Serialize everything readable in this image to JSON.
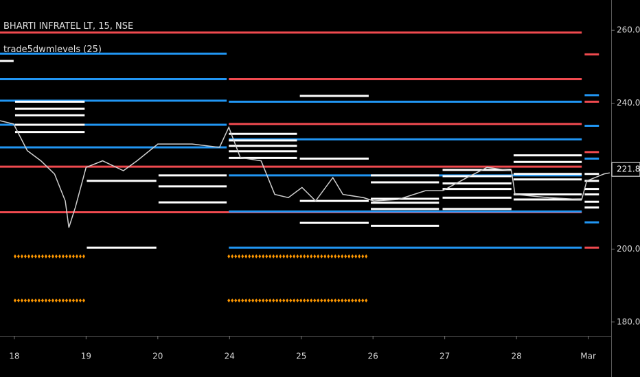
{
  "chart_data": {
    "type": "levels",
    "title": "BHARTI INFRATEL LT, 15, NSE",
    "subtitle": "trade5dwmlevels (25)",
    "background": "#000000",
    "xlim": [
      -0.2,
      8.32
    ],
    "ylim": [
      176.2,
      268.3
    ],
    "xticks": [
      {
        "value": 0,
        "label": "18"
      },
      {
        "value": 1,
        "label": "19"
      },
      {
        "value": 2,
        "label": "20"
      },
      {
        "value": 3,
        "label": "24"
      },
      {
        "value": 4,
        "label": "25"
      },
      {
        "value": 5,
        "label": "26"
      },
      {
        "value": 6,
        "label": "27"
      },
      {
        "value": 7,
        "label": "28"
      },
      {
        "value": 8,
        "label": "Mar"
      }
    ],
    "yticks": [
      {
        "value": 180,
        "label": "180.00"
      },
      {
        "value": 200,
        "label": "200.00"
      },
      {
        "value": 240,
        "label": "240.00"
      },
      {
        "value": 260,
        "label": "260.00"
      }
    ],
    "last_price": 221.85,
    "last_price_color": "#ffffff",
    "price": {
      "color": "#cfcfcf",
      "x": [
        -0.2,
        -0.01,
        0.18,
        0.37,
        0.56,
        0.71,
        0.76,
        0.85,
        1.0,
        1.23,
        1.52,
        1.71,
        2.0,
        2.48,
        2.86,
        2.99,
        3.15,
        3.44,
        3.63,
        3.82,
        4.01,
        4.2,
        4.44,
        4.58,
        4.87,
        5.01,
        5.35,
        5.73,
        5.97,
        6.31,
        6.59,
        6.93,
        6.98,
        7.45,
        7.91,
        7.98,
        8.22,
        8.3
      ],
      "values": [
        235.2,
        234.3,
        227,
        224.2,
        220.6,
        213.2,
        205.9,
        211.4,
        222.4,
        224.2,
        221.5,
        224.2,
        228.8,
        228.8,
        227.9,
        233.4,
        225.1,
        224.2,
        215.0,
        214.1,
        216.9,
        213.2,
        219.6,
        215.0,
        214.1,
        213.2,
        213.6,
        216.0,
        216.0,
        219.6,
        222.4,
        221.5,
        215.0,
        214.1,
        213.6,
        218.7,
        220.6,
        220.9
      ]
    },
    "levels": [
      {
        "color": "#f04a4f",
        "segments": [
          [
            -0.2,
            7.91,
            259.4
          ],
          [
            -0.2,
            7.91,
            210.1
          ],
          [
            -0.2,
            7.91,
            222.6
          ],
          [
            2.99,
            7.91,
            234.3
          ],
          [
            2.99,
            7.91,
            246.6
          ],
          [
            7.95,
            8.15,
            253.4
          ],
          [
            7.95,
            8.15,
            240.4
          ],
          [
            7.95,
            8.15,
            226.6
          ],
          [
            7.95,
            8.15,
            200.4
          ]
        ]
      },
      {
        "color": "#2196f3",
        "segments": [
          [
            -0.2,
            2.96,
            253.6
          ],
          [
            -0.2,
            2.96,
            246.6
          ],
          [
            -0.2,
            2.96,
            240.7
          ],
          [
            -0.2,
            2.96,
            234.1
          ],
          [
            -0.2,
            2.96,
            227.9
          ],
          [
            2.99,
            7.91,
            240.4
          ],
          [
            2.99,
            7.91,
            230.1
          ],
          [
            2.99,
            7.91,
            220.2
          ],
          [
            2.99,
            7.91,
            210.3
          ],
          [
            2.99,
            7.91,
            200.4
          ],
          [
            7.95,
            8.15,
            242.2
          ],
          [
            7.95,
            8.15,
            233.8
          ],
          [
            7.95,
            8.15,
            224.8
          ],
          [
            7.95,
            8.15,
            207.3
          ]
        ]
      },
      {
        "color": "#ffffff",
        "segments": [
          [
            -0.2,
            -0.01,
            251.6
          ],
          [
            0.01,
            0.98,
            240.4
          ],
          [
            0.01,
            0.98,
            238.5
          ],
          [
            0.01,
            0.98,
            236.7
          ],
          [
            0.01,
            0.98,
            234.1
          ],
          [
            0.01,
            0.98,
            232.1
          ],
          [
            1.01,
            1.98,
            218.7
          ],
          [
            1.01,
            1.98,
            200.4
          ],
          [
            2.01,
            2.96,
            220.2
          ],
          [
            2.01,
            2.96,
            217.2
          ],
          [
            2.01,
            2.96,
            212.8
          ],
          [
            2.99,
            3.94,
            231.6
          ],
          [
            2.99,
            3.94,
            229.8
          ],
          [
            2.99,
            3.94,
            228.3
          ],
          [
            2.99,
            3.94,
            226.8
          ],
          [
            2.99,
            3.94,
            225.0
          ],
          [
            3.98,
            4.94,
            242.0
          ],
          [
            3.98,
            4.94,
            224.8
          ],
          [
            3.98,
            4.94,
            213.2
          ],
          [
            3.98,
            4.94,
            207.2
          ],
          [
            4.97,
            5.92,
            220.2
          ],
          [
            4.97,
            5.92,
            218.3
          ],
          [
            4.97,
            5.92,
            213.8
          ],
          [
            4.97,
            5.92,
            212.7
          ],
          [
            4.97,
            5.92,
            211.0
          ],
          [
            4.97,
            5.92,
            206.4
          ],
          [
            5.97,
            6.93,
            221.7
          ],
          [
            5.97,
            6.93,
            220.0
          ],
          [
            5.97,
            6.93,
            218.0
          ],
          [
            5.97,
            6.93,
            216.5
          ],
          [
            5.97,
            6.93,
            214.1
          ],
          [
            5.97,
            6.93,
            211.0
          ],
          [
            6.96,
            7.91,
            225.7
          ],
          [
            6.96,
            7.91,
            223.9
          ],
          [
            6.96,
            7.91,
            220.6
          ],
          [
            6.96,
            7.91,
            219.1
          ],
          [
            6.96,
            7.91,
            215.0
          ],
          [
            6.96,
            7.91,
            213.6
          ],
          [
            7.95,
            8.15,
            220.6
          ],
          [
            7.95,
            8.15,
            218.7
          ],
          [
            7.95,
            8.15,
            216.5
          ],
          [
            7.95,
            8.15,
            215.0
          ],
          [
            7.95,
            8.15,
            213.0
          ],
          [
            7.95,
            8.15,
            211.4
          ]
        ]
      }
    ],
    "markers": {
      "color": "#ff9800",
      "segments": [
        [
          0.01,
          0.98,
          198.0
        ],
        [
          0.01,
          0.98,
          185.9
        ],
        [
          2.99,
          4.94,
          198.0
        ],
        [
          2.99,
          4.94,
          185.9
        ]
      ]
    }
  }
}
